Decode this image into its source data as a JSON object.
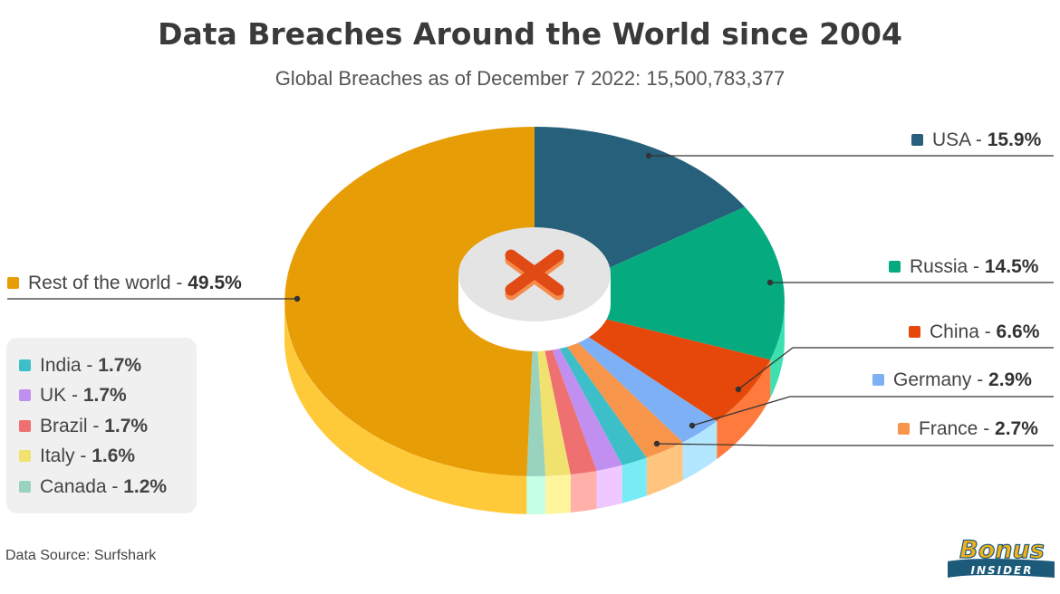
{
  "title": "Data Breaches Around the World since 2004",
  "subtitle": "Global Breaches as of December 7 2022: 15,500,783,377",
  "source": "Data Source: Surfshark",
  "logo": {
    "line1": "Bonus",
    "line2": "INSIDER"
  },
  "chart_data": {
    "type": "pie",
    "title": "Data Breaches Around the World since 2004",
    "subtitle": "Global Breaches as of December 7 2022: 15,500,783,377",
    "slices": [
      {
        "label": "USA",
        "value": 15.9,
        "display": "15.9%",
        "color": "#27607a",
        "side": "#2d6f8c"
      },
      {
        "label": "Russia",
        "value": 14.5,
        "display": "14.5%",
        "color": "#05ab7f",
        "side": "#3de0b0"
      },
      {
        "label": "China",
        "value": 6.6,
        "display": "6.6%",
        "color": "#e5480a",
        "side": "#ff7a3d"
      },
      {
        "label": "Germany",
        "value": 2.9,
        "display": "2.9%",
        "color": "#7eb0f5",
        "side": "#b3e6ff"
      },
      {
        "label": "France",
        "value": 2.7,
        "display": "2.7%",
        "color": "#f7954a",
        "side": "#ffc47e"
      },
      {
        "label": "India",
        "value": 1.7,
        "display": "1.7%",
        "color": "#3cbfc8",
        "side": "#78ecf5"
      },
      {
        "label": "UK",
        "value": 1.7,
        "display": "1.7%",
        "color": "#c18ff0",
        "side": "#efc8ff"
      },
      {
        "label": "Brazil",
        "value": 1.7,
        "display": "1.7%",
        "color": "#ef7070",
        "side": "#ffb0a8"
      },
      {
        "label": "Italy",
        "value": 1.6,
        "display": "1.6%",
        "color": "#f1e270",
        "side": "#fff59d"
      },
      {
        "label": "Canada",
        "value": 1.2,
        "display": "1.2%",
        "color": "#99d3bd",
        "side": "#c4ffe6"
      },
      {
        "label": "Rest of the world",
        "value": 49.5,
        "display": "49.5%",
        "color": "#e79d05",
        "side": "#ffca3a"
      }
    ]
  }
}
